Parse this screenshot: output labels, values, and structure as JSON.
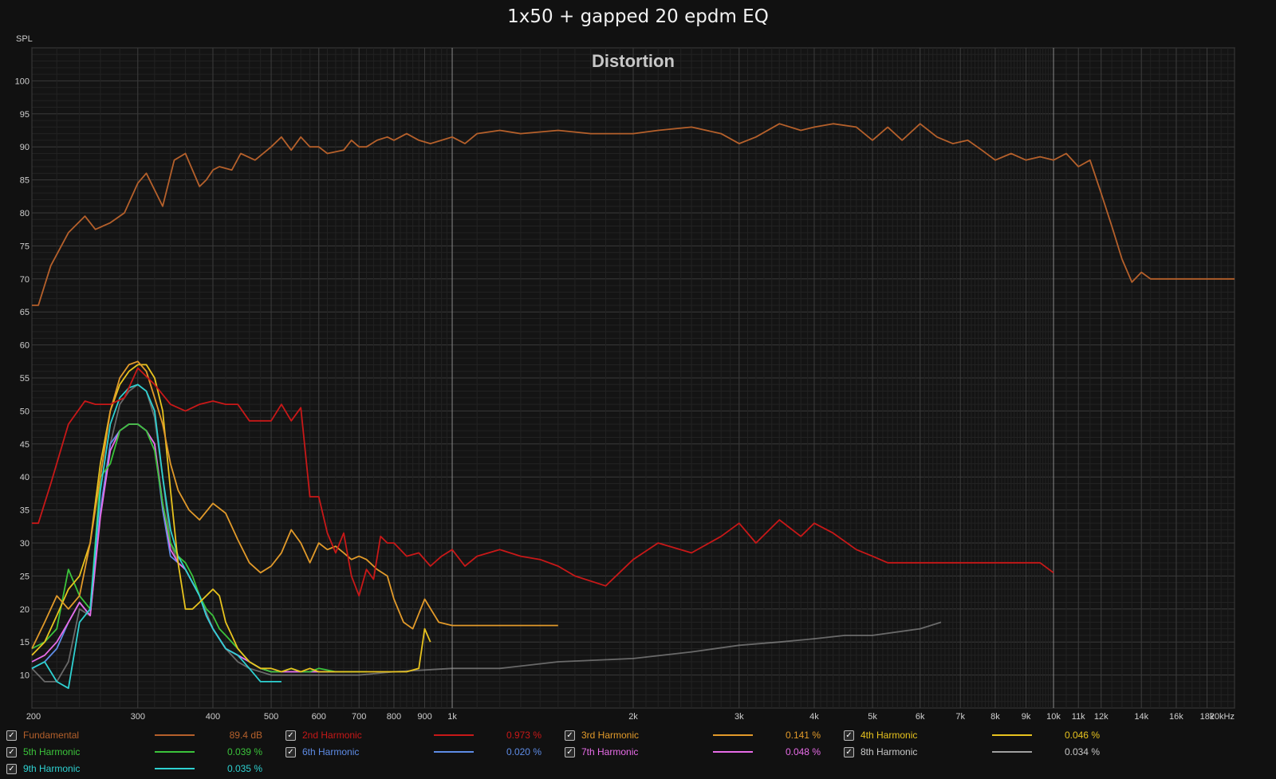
{
  "title": "1x50 + gapped 20 epdm EQ",
  "chart_data": {
    "type": "line",
    "title": "1x50 + gapped 20 epdm EQ",
    "subtitle": "Distortion",
    "ylabel": "SPL",
    "xscale": "log",
    "xlim": [
      200,
      20000
    ],
    "ylim": [
      5,
      105
    ],
    "yticks": [
      10,
      15,
      20,
      25,
      30,
      35,
      40,
      45,
      50,
      55,
      60,
      65,
      70,
      75,
      80,
      85,
      90,
      95,
      100
    ],
    "xticks": [
      {
        "v": 200,
        "label": "200"
      },
      {
        "v": 300,
        "label": "300"
      },
      {
        "v": 400,
        "label": "400"
      },
      {
        "v": 500,
        "label": "500"
      },
      {
        "v": 600,
        "label": "600"
      },
      {
        "v": 700,
        "label": "700"
      },
      {
        "v": 800,
        "label": "800"
      },
      {
        "v": 900,
        "label": "900"
      },
      {
        "v": 1000,
        "label": "1k"
      },
      {
        "v": 2000,
        "label": "2k"
      },
      {
        "v": 3000,
        "label": "3k"
      },
      {
        "v": 4000,
        "label": "4k"
      },
      {
        "v": 5000,
        "label": "5k"
      },
      {
        "v": 6000,
        "label": "6k"
      },
      {
        "v": 7000,
        "label": "7k"
      },
      {
        "v": 8000,
        "label": "8k"
      },
      {
        "v": 9000,
        "label": "9k"
      },
      {
        "v": 10000,
        "label": "10k"
      },
      {
        "v": 11000,
        "label": "11k"
      },
      {
        "v": 12000,
        "label": "12k"
      },
      {
        "v": 14000,
        "label": "14k"
      },
      {
        "v": 16000,
        "label": "16k"
      },
      {
        "v": 18000,
        "label": "18k"
      },
      {
        "v": 20000,
        "label": "20kHz"
      }
    ],
    "grid": true,
    "series": [
      {
        "name": "Fundamental",
        "color": "#b5602b",
        "value_label": "89.4 dB",
        "x": [
          200,
          205,
          215,
          230,
          245,
          255,
          270,
          285,
          300,
          310,
          330,
          345,
          360,
          380,
          390,
          400,
          410,
          430,
          445,
          470,
          500,
          520,
          540,
          560,
          580,
          600,
          620,
          660,
          680,
          700,
          720,
          750,
          780,
          800,
          840,
          880,
          920,
          960,
          1000,
          1050,
          1100,
          1200,
          1300,
          1500,
          1700,
          2000,
          2200,
          2500,
          2800,
          3000,
          3200,
          3500,
          3800,
          4000,
          4300,
          4700,
          5000,
          5300,
          5600,
          6000,
          6400,
          6800,
          7200,
          7600,
          8000,
          8500,
          9000,
          9500,
          10000,
          10500,
          11000,
          11500,
          12000,
          12500,
          13000,
          13500,
          14000,
          14500,
          15000,
          15500,
          16000,
          16500,
          17000,
          17500,
          18000,
          19000,
          20000
        ],
        "y": [
          66,
          66,
          72,
          77,
          79.5,
          77.5,
          78.5,
          80,
          84.5,
          86,
          81,
          88,
          89,
          84,
          85,
          86.5,
          87,
          86.5,
          89,
          88,
          90,
          91.5,
          89.5,
          91.5,
          90,
          90,
          89,
          89.5,
          91,
          90,
          90,
          91,
          91.5,
          91,
          92,
          91,
          90.5,
          91,
          91.5,
          90.5,
          92,
          92.5,
          92,
          92.5,
          92,
          92,
          92.5,
          93,
          92,
          90.5,
          91.5,
          93.5,
          92.5,
          93,
          93.5,
          93,
          91,
          93,
          91,
          93.5,
          91.5,
          90.5,
          91,
          89.5,
          88,
          89,
          88,
          88.5,
          88,
          89,
          87,
          88,
          83,
          78,
          73,
          69.5,
          71,
          70,
          70,
          70,
          70,
          70,
          70,
          70,
          70,
          70,
          70
        ]
      },
      {
        "name": "2nd Harmonic",
        "color": "#c81818",
        "value_label": "0.973 %",
        "x": [
          200,
          205,
          215,
          230,
          245,
          255,
          270,
          285,
          300,
          320,
          340,
          360,
          380,
          400,
          420,
          440,
          460,
          480,
          500,
          520,
          540,
          560,
          580,
          600,
          620,
          640,
          660,
          680,
          700,
          720,
          740,
          760,
          780,
          800,
          840,
          880,
          920,
          960,
          1000,
          1050,
          1100,
          1200,
          1300,
          1400,
          1500,
          1600,
          1800,
          2000,
          2200,
          2500,
          2800,
          3000,
          3200,
          3500,
          3800,
          4000,
          4300,
          4700,
          5000,
          5300,
          5600,
          6000,
          6400,
          6800,
          7200,
          7600,
          8000,
          8500,
          9000,
          9500,
          10000
        ],
        "y": [
          33,
          33,
          39,
          48,
          51.5,
          51,
          51,
          52,
          56.5,
          54,
          51,
          50,
          51,
          51.5,
          51,
          51,
          48.5,
          48.5,
          48.5,
          51,
          48.5,
          50.5,
          37,
          37,
          31.5,
          28.5,
          31.5,
          25,
          22,
          26,
          24.5,
          31,
          30,
          30,
          28,
          28.5,
          26.5,
          28,
          29,
          26.5,
          28,
          29,
          28,
          27.5,
          26.5,
          25,
          23.5,
          27.5,
          30,
          28.5,
          31,
          33,
          30,
          33.5,
          31,
          33,
          31.5,
          29,
          28,
          27,
          27,
          27,
          27,
          27,
          27,
          27,
          27,
          27,
          27,
          27,
          25.5
        ]
      },
      {
        "name": "3rd Harmonic",
        "color": "#e29a2a",
        "value_label": "0.141 %",
        "x": [
          200,
          210,
          220,
          230,
          240,
          250,
          260,
          270,
          280,
          290,
          300,
          310,
          320,
          330,
          340,
          350,
          365,
          380,
          400,
          420,
          440,
          460,
          480,
          500,
          520,
          540,
          560,
          580,
          600,
          620,
          640,
          660,
          680,
          700,
          720,
          750,
          780,
          800,
          830,
          860,
          900,
          950,
          1000,
          1050,
          1100,
          1150,
          1200,
          1250,
          1300,
          1350,
          1400,
          1450,
          1500
        ],
        "y": [
          14,
          18,
          22,
          20,
          22,
          30,
          40,
          50,
          55,
          57,
          57.5,
          56,
          52,
          48,
          42,
          38,
          35,
          33.5,
          36,
          34.5,
          30.5,
          27,
          25.5,
          26.5,
          28.5,
          32,
          30,
          27,
          30,
          29,
          29.5,
          28.5,
          27.5,
          28,
          27.5,
          26,
          25,
          21.5,
          18,
          17,
          21.5,
          18,
          17.5,
          17.5,
          17.5,
          17.5,
          17.5,
          17.5,
          17.5,
          17.5,
          17.5,
          17.5,
          17.5
        ]
      },
      {
        "name": "4th Harmonic",
        "color": "#e8c31e",
        "value_label": "0.046 %",
        "x": [
          200,
          210,
          220,
          230,
          240,
          250,
          260,
          270,
          280,
          290,
          300,
          310,
          320,
          330,
          340,
          350,
          360,
          370,
          380,
          390,
          400,
          410,
          420,
          430,
          440,
          450,
          460,
          480,
          500,
          520,
          540,
          560,
          580,
          600,
          640,
          680,
          720,
          760,
          800,
          840,
          880,
          900,
          920
        ],
        "y": [
          13,
          15,
          19,
          23,
          25,
          30,
          42,
          50,
          54,
          56,
          57,
          57,
          55,
          50,
          38,
          27,
          20,
          20,
          21,
          22,
          23,
          22,
          18,
          16,
          14,
          13,
          12,
          11,
          11,
          10.5,
          11,
          10.5,
          11,
          10.5,
          10.5,
          10.5,
          10.5,
          10.5,
          10.5,
          10.5,
          11,
          17,
          15
        ]
      },
      {
        "name": "5th Harmonic",
        "color": "#3bc33b",
        "value_label": "0.039 %",
        "x": [
          200,
          210,
          220,
          230,
          240,
          250,
          260,
          270,
          280,
          290,
          300,
          310,
          320,
          330,
          340,
          350,
          360,
          370,
          380,
          390,
          400,
          410,
          420,
          440,
          460,
          480,
          500,
          520,
          540,
          560,
          580,
          600,
          640,
          680,
          720
        ],
        "y": [
          14,
          15,
          17,
          26,
          22,
          20,
          40,
          42,
          47,
          48,
          48,
          47,
          44,
          36,
          30,
          28,
          27,
          25,
          22,
          20,
          19,
          17,
          16,
          14,
          12,
          11,
          10.5,
          10.5,
          11,
          10.5,
          10.5,
          11,
          10.5,
          10.5,
          10.5
        ]
      },
      {
        "name": "6th Harmonic",
        "color": "#5e8ce6",
        "value_label": "0.020 %",
        "x": [
          200,
          210,
          220,
          230,
          240,
          250,
          260,
          270,
          280,
          290,
          300,
          310,
          320,
          330,
          340,
          350,
          360,
          370,
          380,
          390,
          400,
          420,
          440,
          460,
          480,
          500,
          540,
          580,
          620,
          660,
          700
        ],
        "y": [
          11,
          12,
          14,
          18,
          21,
          19,
          35,
          45,
          47,
          48,
          48,
          47,
          45,
          35,
          28,
          27,
          26,
          24,
          22,
          19,
          17,
          14,
          13,
          12,
          11,
          10.5,
          10.5,
          10.5,
          10.5,
          10.5,
          10.5
        ]
      },
      {
        "name": "7th Harmonic",
        "color": "#e86ce8",
        "value_label": "0.048 %",
        "x": [
          200,
          210,
          220,
          230,
          240,
          250,
          260,
          270,
          280,
          290,
          300,
          310,
          320,
          330,
          340,
          350,
          360,
          370,
          380,
          390,
          400,
          420,
          440,
          460,
          480,
          500,
          540,
          580,
          620,
          660
        ],
        "y": [
          12,
          13,
          15,
          18,
          21,
          19,
          34,
          44,
          47,
          48,
          48,
          47,
          45,
          36,
          29,
          27,
          26,
          24,
          22,
          19,
          17,
          14,
          13,
          12,
          11,
          10.5,
          10.5,
          10.5,
          10.5,
          10.5
        ]
      },
      {
        "name": "8th Harmonic",
        "color": "#a0a0a0",
        "value_label": "0.034 %",
        "x": [
          200,
          210,
          220,
          230,
          240,
          250,
          260,
          270,
          280,
          290,
          300,
          310,
          320,
          330,
          340,
          350,
          360,
          370,
          380,
          400,
          420,
          440,
          460,
          500,
          600,
          700,
          800,
          1000,
          1200,
          1500,
          2000,
          2500,
          3000,
          3500,
          4000,
          4500,
          5000,
          6000,
          6500
        ],
        "y": [
          11,
          9,
          9,
          12,
          20,
          19,
          35,
          45,
          51,
          53,
          54,
          53,
          49,
          40,
          30,
          27,
          26,
          24,
          22,
          17,
          14,
          12,
          11,
          10,
          10,
          10,
          10.5,
          11,
          11,
          12,
          12.5,
          13.5,
          14.5,
          15,
          15.5,
          16,
          16,
          17,
          18
        ]
      },
      {
        "name": "9th Harmonic",
        "color": "#2ed1d1",
        "value_label": "0.035 %",
        "x": [
          200,
          210,
          220,
          230,
          240,
          250,
          260,
          270,
          280,
          290,
          300,
          310,
          320,
          330,
          340,
          350,
          360,
          370,
          380,
          390,
          400,
          420,
          440,
          460,
          480,
          500,
          520
        ],
        "y": [
          11,
          12,
          9,
          8,
          18,
          20,
          38,
          48,
          52,
          53.5,
          54,
          53,
          50,
          40,
          32,
          28,
          26,
          24,
          22,
          19,
          17,
          14,
          13,
          11,
          9,
          9,
          9
        ]
      }
    ]
  }
}
